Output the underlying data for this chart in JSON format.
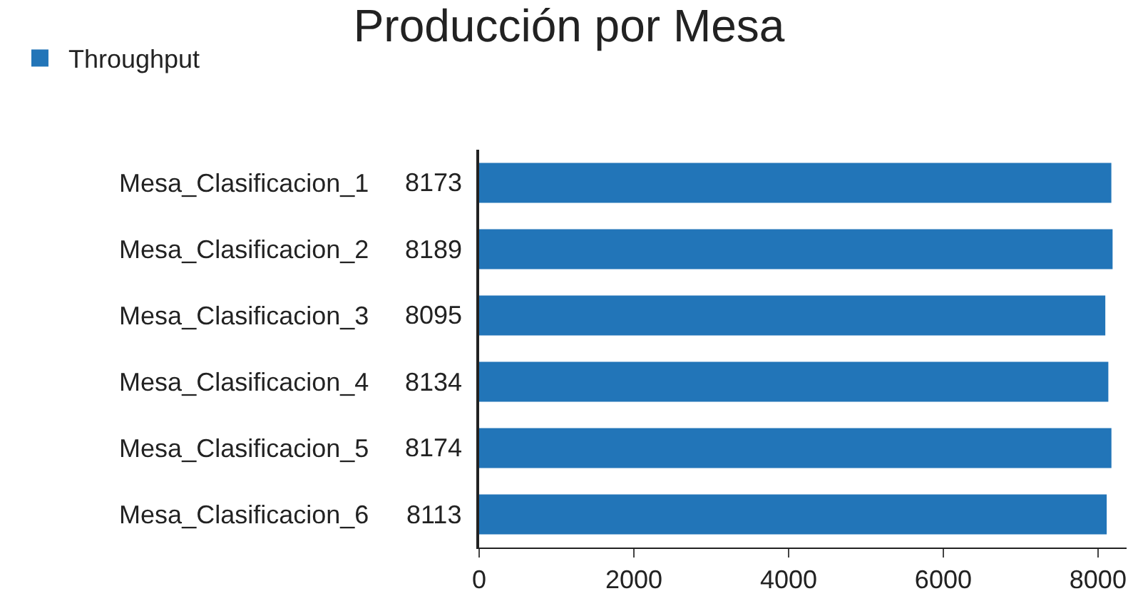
{
  "chart_data": {
    "type": "bar",
    "title": "Producción por Mesa",
    "orientation": "horizontal",
    "categories": [
      "Mesa_Clasificacion_1",
      "Mesa_Clasificacion_2",
      "Mesa_Clasificacion_3",
      "Mesa_Clasificacion_4",
      "Mesa_Clasificacion_5",
      "Mesa_Clasificacion_6"
    ],
    "series": [
      {
        "name": "Throughput",
        "color": "#2275b8",
        "values": [
          8173,
          8189,
          8095,
          8134,
          8174,
          8113
        ]
      }
    ],
    "xlim": [
      0,
      8370
    ],
    "xticks": [
      0,
      2000,
      4000,
      6000,
      8000
    ],
    "data_labels": true,
    "legend": "top left"
  }
}
